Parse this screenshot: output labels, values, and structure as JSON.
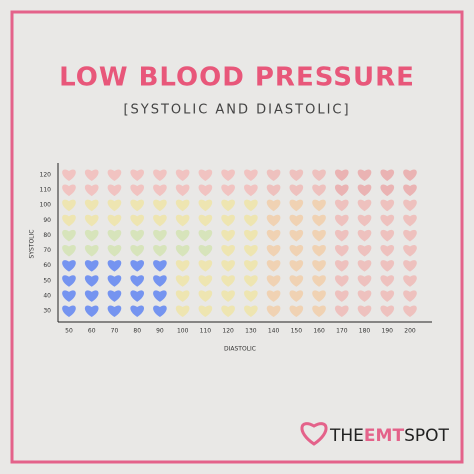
{
  "chart_data": {
    "type": "heart-grid",
    "title": "LOW BLOOD PRESSURE",
    "subtitle": "[SYSTOLIC AND DIASTOLIC]",
    "x_label": "DIASTOLIC",
    "y_label": "SYSTOLIC",
    "xticks": [
      50,
      60,
      70,
      80,
      90,
      100,
      110,
      120,
      130,
      140,
      150,
      160,
      170,
      180,
      190,
      200
    ],
    "yticks": [
      30,
      40,
      50,
      60,
      70,
      80,
      90,
      100,
      110,
      120
    ],
    "cell_colors": [
      [
        "#6f8ff0",
        "#6f8ff0",
        "#6f8ff0",
        "#6f8ff0",
        "#6f8ff0",
        "#efe49a",
        "#efe49a",
        "#efe49a",
        "#efe49a",
        "#f2c99c",
        "#f2c99c",
        "#f2c99c",
        "#efb0ad",
        "#efb0ad",
        "#efb0ad",
        "#efb0ad"
      ],
      [
        "#6f8ff0",
        "#6f8ff0",
        "#6f8ff0",
        "#6f8ff0",
        "#6f8ff0",
        "#efe49a",
        "#efe49a",
        "#efe49a",
        "#efe49a",
        "#f2c99c",
        "#f2c99c",
        "#f2c99c",
        "#efb0ad",
        "#efb0ad",
        "#efb0ad",
        "#efb0ad"
      ],
      [
        "#6f8ff0",
        "#6f8ff0",
        "#6f8ff0",
        "#6f8ff0",
        "#6f8ff0",
        "#efe49a",
        "#efe49a",
        "#efe49a",
        "#efe49a",
        "#f2c99c",
        "#f2c99c",
        "#f2c99c",
        "#efb0ad",
        "#efb0ad",
        "#efb0ad",
        "#efb0ad"
      ],
      [
        "#6f8ff0",
        "#6f8ff0",
        "#6f8ff0",
        "#6f8ff0",
        "#6f8ff0",
        "#efe49a",
        "#efe49a",
        "#efe49a",
        "#efe49a",
        "#f2c99c",
        "#f2c99c",
        "#f2c99c",
        "#efb0ad",
        "#efb0ad",
        "#efb0ad",
        "#efb0ad"
      ],
      [
        "#cfe3a8",
        "#cfe3a8",
        "#cfe3a8",
        "#cfe3a8",
        "#cfe3a8",
        "#cfe3a8",
        "#cfe3a8",
        "#efe49a",
        "#efe49a",
        "#f2c99c",
        "#f2c99c",
        "#f2c99c",
        "#efb0ad",
        "#efb0ad",
        "#efb0ad",
        "#efb0ad"
      ],
      [
        "#cfe3a8",
        "#cfe3a8",
        "#cfe3a8",
        "#cfe3a8",
        "#cfe3a8",
        "#cfe3a8",
        "#cfe3a8",
        "#efe49a",
        "#efe49a",
        "#f2c99c",
        "#f2c99c",
        "#f2c99c",
        "#efb0ad",
        "#efb0ad",
        "#efb0ad",
        "#efb0ad"
      ],
      [
        "#efe49a",
        "#efe49a",
        "#efe49a",
        "#efe49a",
        "#efe49a",
        "#efe49a",
        "#efe49a",
        "#efe49a",
        "#efe49a",
        "#f2c99c",
        "#f2c99c",
        "#f2c99c",
        "#efb0ad",
        "#efb0ad",
        "#efb0ad",
        "#efb0ad"
      ],
      [
        "#efe49a",
        "#efe49a",
        "#efe49a",
        "#efe49a",
        "#efe49a",
        "#efe49a",
        "#efe49a",
        "#efe49a",
        "#efe49a",
        "#f2c99c",
        "#f2c99c",
        "#f2c99c",
        "#efb0ad",
        "#efb0ad",
        "#efb0ad",
        "#efb0ad"
      ],
      [
        "#f3b4b0",
        "#f3b4b0",
        "#f3b4b0",
        "#f3b4b0",
        "#f3b4b0",
        "#f3b4b0",
        "#f3b4b0",
        "#f3b4b0",
        "#f3b4b0",
        "#efb0ad",
        "#efb0ad",
        "#efb0ad",
        "#ea9d9d",
        "#ea9d9d",
        "#ea9d9d",
        "#ea9d9d"
      ],
      [
        "#f3b4b0",
        "#f3b4b0",
        "#f3b4b0",
        "#f3b4b0",
        "#f3b4b0",
        "#f3b4b0",
        "#f3b4b0",
        "#f3b4b0",
        "#f3b4b0",
        "#efb0ad",
        "#efb0ad",
        "#efb0ad",
        "#ea9d9d",
        "#ea9d9d",
        "#ea9d9d",
        "#ea9d9d"
      ]
    ],
    "title_color": "#e8577a",
    "logo": {
      "prefix": "THE",
      "brand": "EMT",
      "suffix": "SPOT"
    }
  }
}
